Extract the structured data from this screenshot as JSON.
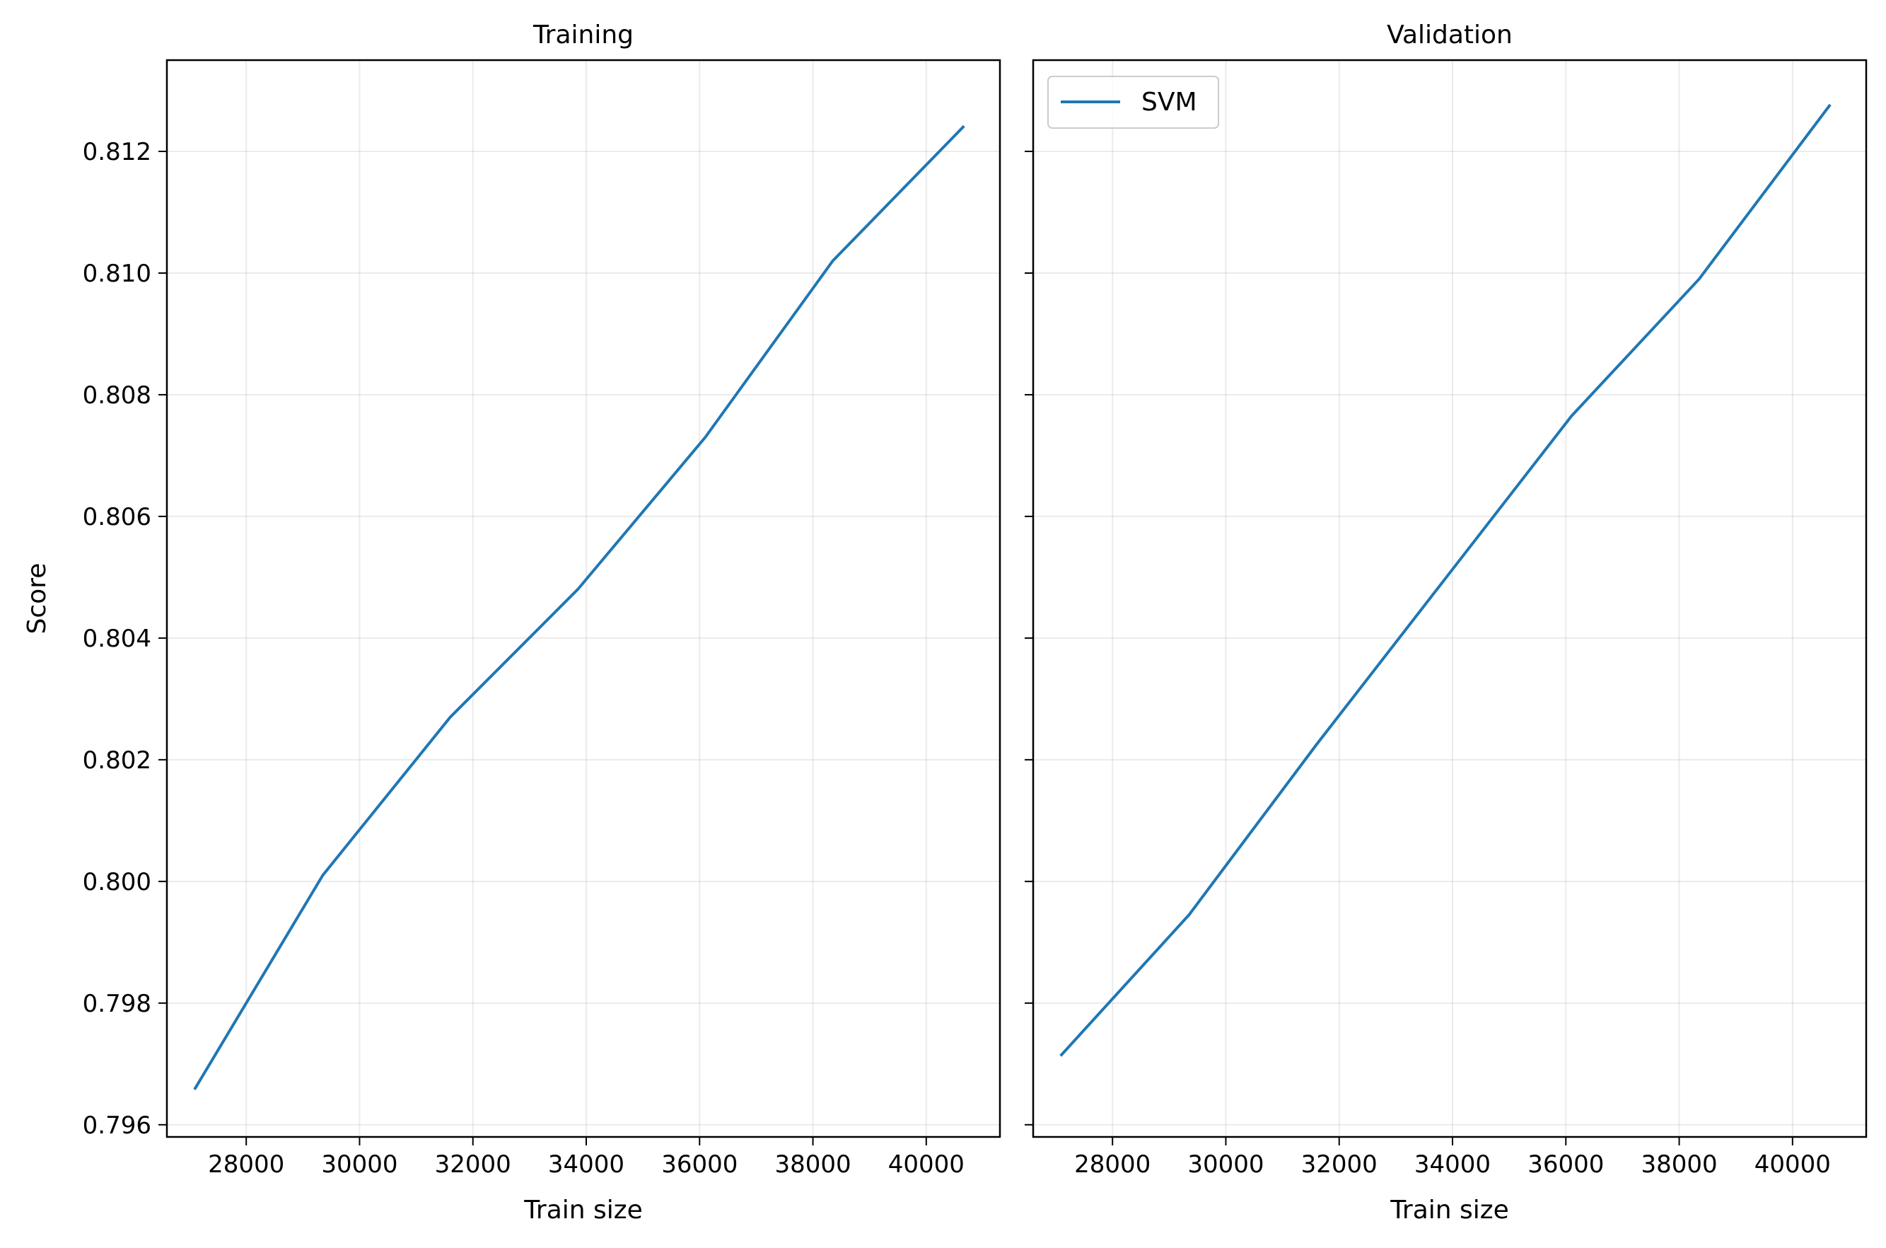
{
  "chart_data": [
    {
      "type": "line",
      "title": "Training",
      "xlabel": "Train size",
      "ylabel": "Score",
      "xlim": [
        26600,
        41300
      ],
      "ylim": [
        0.7958,
        0.8135
      ],
      "xticks": [
        28000,
        30000,
        32000,
        34000,
        36000,
        38000,
        40000
      ],
      "xtick_labels": [
        "28000",
        "30000",
        "32000",
        "34000",
        "36000",
        "38000",
        "40000"
      ],
      "yticks": [
        0.796,
        0.798,
        0.8,
        0.802,
        0.804,
        0.806,
        0.808,
        0.81,
        0.812
      ],
      "ytick_labels": [
        "0.796",
        "0.798",
        "0.800",
        "0.802",
        "0.804",
        "0.806",
        "0.808",
        "0.810",
        "0.812"
      ],
      "show_yticklabels": true,
      "grid": true,
      "series": [
        {
          "name": "SVM",
          "color": "#1f77b4",
          "x": [
            27100,
            29350,
            31600,
            33850,
            36100,
            38350,
            40650
          ],
          "y": [
            0.7966,
            0.8001,
            0.8027,
            0.8048,
            0.8073,
            0.8102,
            0.8124
          ]
        }
      ]
    },
    {
      "type": "line",
      "title": "Validation",
      "xlabel": "Train size",
      "ylabel": "",
      "xlim": [
        26600,
        41300
      ],
      "ylim": [
        0.7958,
        0.8135
      ],
      "xticks": [
        28000,
        30000,
        32000,
        34000,
        36000,
        38000,
        40000
      ],
      "xtick_labels": [
        "28000",
        "30000",
        "32000",
        "34000",
        "36000",
        "38000",
        "40000"
      ],
      "yticks": [
        0.796,
        0.798,
        0.8,
        0.802,
        0.804,
        0.806,
        0.808,
        0.81,
        0.812
      ],
      "ytick_labels": [],
      "show_yticklabels": false,
      "grid": true,
      "legend": "upper-left",
      "series": [
        {
          "name": "SVM",
          "color": "#1f77b4",
          "x": [
            27100,
            29350,
            31600,
            33850,
            36100,
            38350,
            40650
          ],
          "y": [
            0.79715,
            0.79945,
            0.80225,
            0.80495,
            0.80765,
            0.8099,
            0.81275
          ]
        }
      ]
    }
  ]
}
